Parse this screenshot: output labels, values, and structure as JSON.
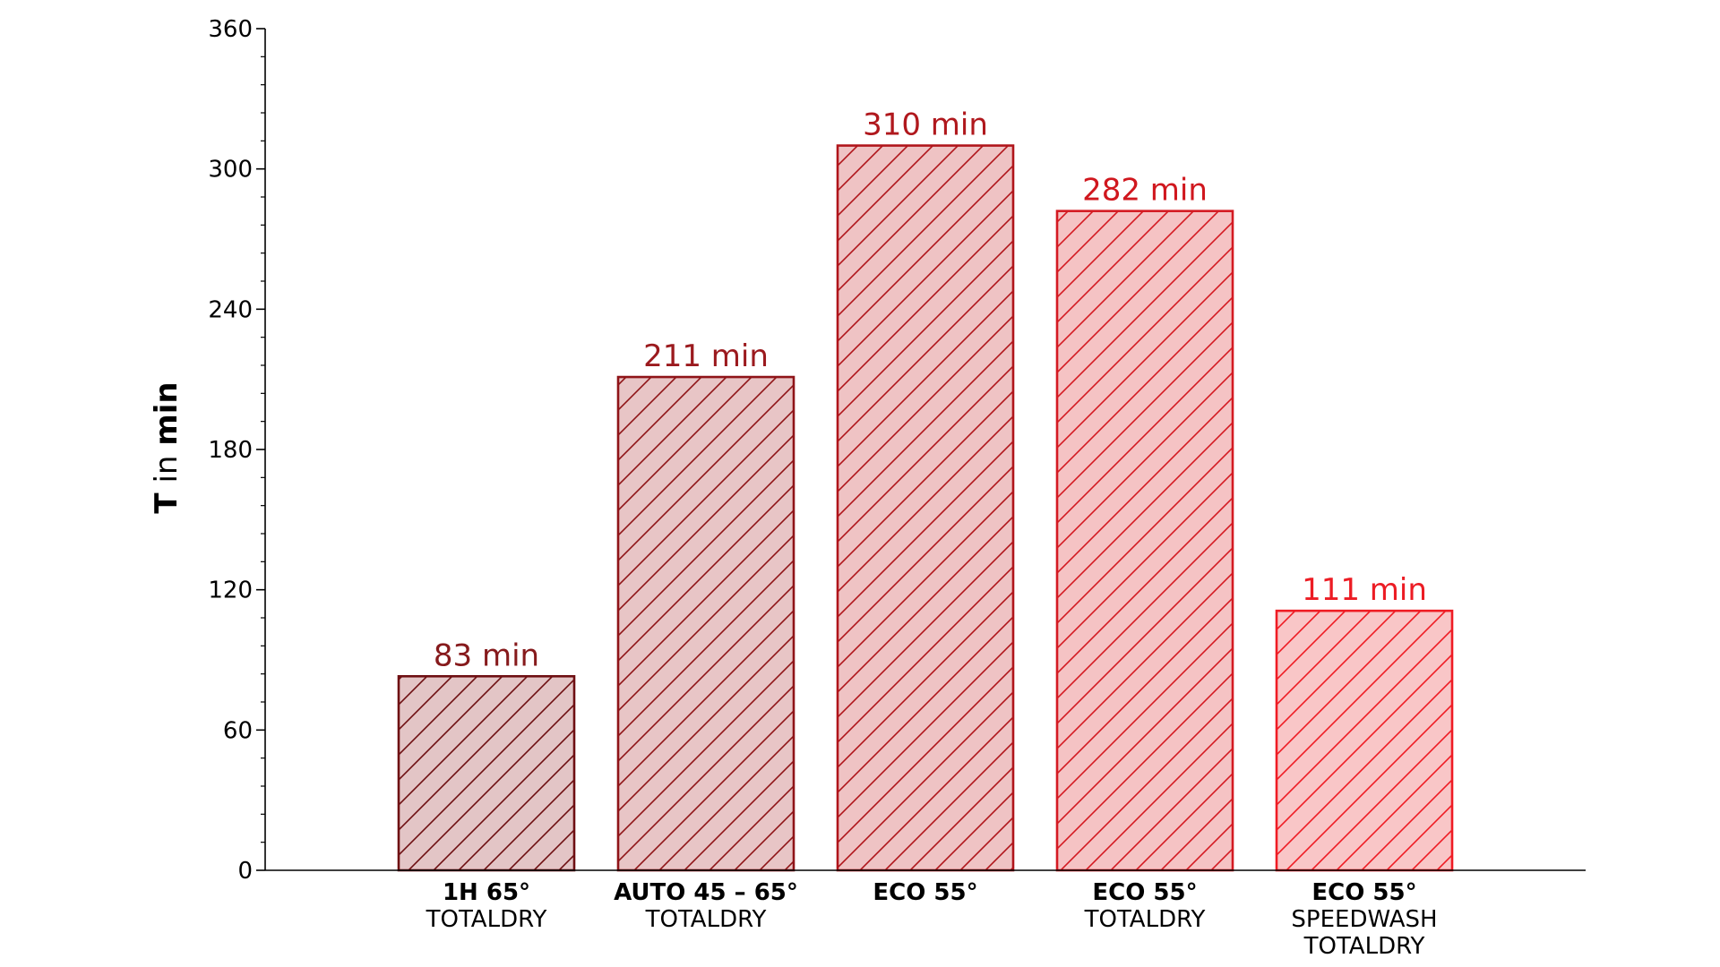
{
  "chart_data": {
    "type": "bar",
    "ylabel_bold": "T",
    "ylabel_mid": " in ",
    "ylabel_unit": "min",
    "ylim": [
      0,
      360
    ],
    "yticks": [
      0,
      60,
      120,
      180,
      240,
      300,
      360
    ],
    "yticks_minor_step": 12,
    "bars": [
      {
        "name_bold": "1H 65°",
        "sub_lines": [
          "TOTALDRY"
        ],
        "value": 83,
        "label": "83 min",
        "edge": "#6e0f12",
        "fill": "#e3c5c6",
        "label_color": "#861a1c"
      },
      {
        "name_bold": "AUTO 45 – 65°",
        "sub_lines": [
          "TOTALDRY"
        ],
        "value": 211,
        "label": "211 min",
        "edge": "#8f1418",
        "fill": "#e8c5c6",
        "label_color": "#9b1a1e"
      },
      {
        "name_bold": "ECO 55°",
        "sub_lines": [],
        "value": 310,
        "label": "310 min",
        "edge": "#b0151b",
        "fill": "#efc3c4",
        "label_color": "#b0181d"
      },
      {
        "name_bold": "ECO 55°",
        "sub_lines": [
          "TOTALDRY"
        ],
        "value": 282,
        "label": "282 min",
        "edge": "#d41a22",
        "fill": "#f5c3c4",
        "label_color": "#d0171e"
      },
      {
        "name_bold": "ECO 55°",
        "sub_lines": [
          "SPEEDWASH",
          "TOTALDRY"
        ],
        "value": 111,
        "label": "111 min",
        "edge": "#ef1c24",
        "fill": "#f9c6c7",
        "label_color": "#ec1c24"
      }
    ]
  }
}
